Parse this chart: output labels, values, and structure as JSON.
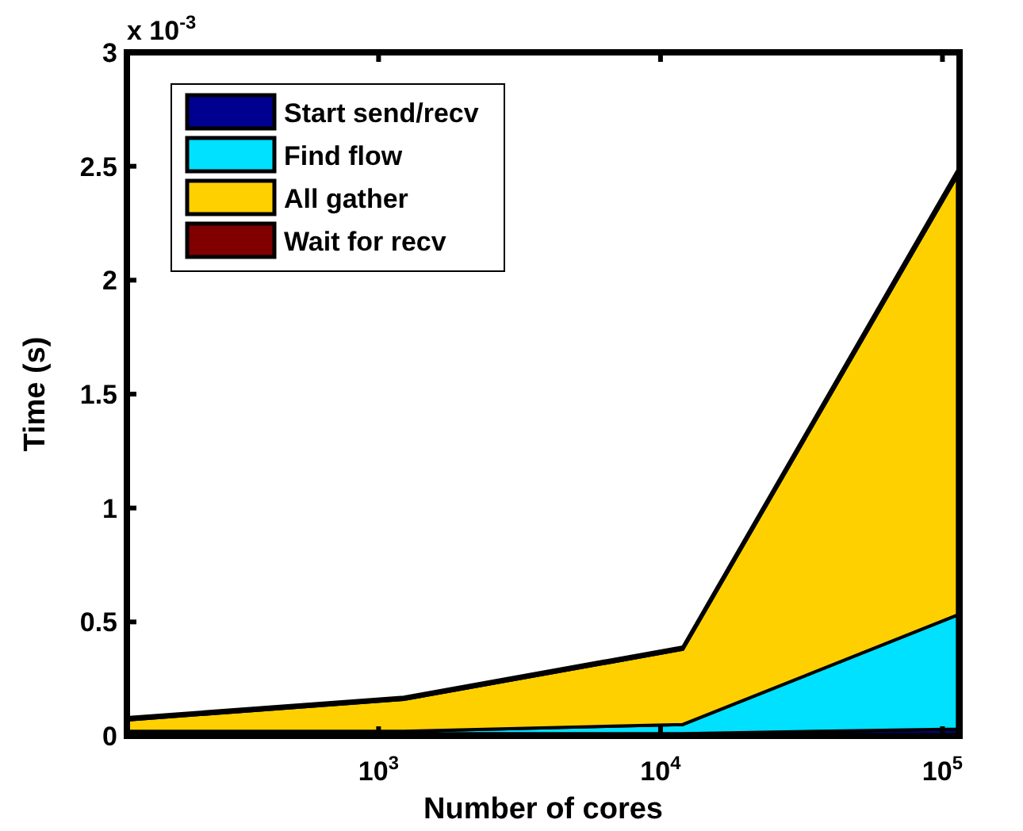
{
  "chart_data": {
    "type": "area",
    "stacked": true,
    "xlabel": "Number of cores",
    "ylabel": "Time (s)",
    "x": [
      128,
      1229,
      12000,
      113000
    ],
    "series": [
      {
        "name": "Start send/recv",
        "color": "#000090",
        "values": [
          0.01,
          0.01,
          0.01,
          0.03
        ]
      },
      {
        "name": "Find flow",
        "color": "#00e0ff",
        "values": [
          0.01,
          0.01,
          0.04,
          0.5
        ]
      },
      {
        "name": "All gather",
        "color": "#ffd000",
        "values": [
          0.05,
          0.14,
          0.33,
          1.93
        ]
      },
      {
        "name": "Wait for recv",
        "color": "#800000",
        "values": [
          0.01,
          0.01,
          0.01,
          0.02
        ]
      }
    ],
    "log": "x",
    "xlim": [
      128,
      115000
    ],
    "xticks": [
      {
        "value": 1000,
        "label": "10$^{3}$"
      },
      {
        "value": 10000,
        "label": "10$^{4}$"
      },
      {
        "value": 100000,
        "label": "10$^{5}$"
      }
    ],
    "ylim": [
      0,
      3
    ],
    "yticks": [
      0,
      0.5,
      1,
      1.5,
      2,
      2.5,
      3
    ],
    "annotations": [
      "x 10$^{-3}$"
    ],
    "legend": "top left",
    "grid": false
  }
}
